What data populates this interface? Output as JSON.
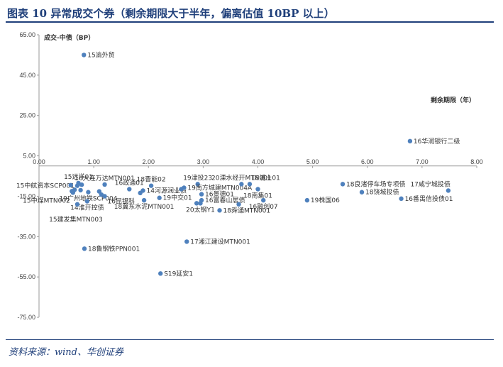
{
  "figure": {
    "title": "图表 10    异常成交个券（剩余期限大于半年，偏离估值 10BP 以上）",
    "source": "资料来源：wind、华创证券"
  },
  "colors": {
    "point": "#4f81bd",
    "title": "#1f3f7a",
    "axis": "#9a9a9a"
  },
  "chart_data": {
    "type": "scatter",
    "xlabel": "剩余期限（年）",
    "ylabel": "成交-中债（BP）",
    "xlim": [
      0,
      8
    ],
    "ylim": [
      -75,
      65
    ],
    "xticks": [
      0,
      1,
      2,
      3,
      4,
      5,
      6,
      7,
      8
    ],
    "yticks": [
      65,
      45,
      25,
      5,
      -15,
      -35,
      -55,
      -75
    ],
    "xtick_labels": [
      "0.00",
      "1.00",
      "2.00",
      "3.00",
      "4.00",
      "5.00",
      "6.00",
      "7.00",
      "8.00"
    ],
    "ytick_labels": [
      "65.00",
      "45.00",
      "25.00",
      "5.00",
      "-15.00",
      "-35.00",
      "-55.00",
      "-75.00"
    ],
    "grid": false,
    "points": [
      {
        "label": "15渝外贸",
        "x": 0.82,
        "y": 55.0,
        "anchor": "end-right"
      },
      {
        "label": "16华润银行二级",
        "x": 6.78,
        "y": 12.3,
        "anchor": "end-right"
      },
      {
        "label": "15远洋01",
        "x": 0.72,
        "y": -8.5,
        "anchor": "above"
      },
      {
        "label": "15中航资本SCP001",
        "x": 0.7,
        "y": -9.8,
        "anchor": "left"
      },
      {
        "label": "15中煤MTN002",
        "x": 0.62,
        "y": -13.2,
        "anchor": "left-below"
      },
      {
        "label": "19广州地铁SCP004",
        "x": 0.9,
        "y": -13.0,
        "anchor": "below"
      },
      {
        "label": "14淮开控债",
        "x": 0.88,
        "y": -17.5,
        "anchor": "below"
      },
      {
        "label": "15建发集MTN003",
        "x": 0.7,
        "y": -19.0,
        "anchor": "below-left"
      },
      {
        "label": "16大连万达MTN001",
        "x": 1.2,
        "y": -9.2,
        "anchor": "above"
      },
      {
        "label": "16政通01",
        "x": 1.65,
        "y": -11.5,
        "anchor": "above"
      },
      {
        "label": "16昆银科",
        "x": 1.2,
        "y": -15.0,
        "anchor": "below-right"
      },
      {
        "label": "18鲁钢铁PPN001",
        "x": 0.83,
        "y": -41.0,
        "anchor": "end-right"
      },
      {
        "label": "18晋能02",
        "x": 2.05,
        "y": -9.8,
        "anchor": "above"
      },
      {
        "label": "14河源润业债",
        "x": 1.9,
        "y": -12.2,
        "anchor": "end-right"
      },
      {
        "label": "18冀东水泥MTN001",
        "x": 1.92,
        "y": -17.0,
        "anchor": "below"
      },
      {
        "label": "19中交01",
        "x": 2.2,
        "y": -15.8,
        "anchor": "end-right"
      },
      {
        "label": "19津投23",
        "x": 2.9,
        "y": -9.0,
        "anchor": "above"
      },
      {
        "label": "19南方城建MTN004A",
        "x": 2.65,
        "y": -10.8,
        "anchor": "end-right"
      },
      {
        "label": "S19延安1",
        "x": 2.22,
        "y": -53.3,
        "anchor": "end-right"
      },
      {
        "label": "17湘江建设MTN001",
        "x": 2.7,
        "y": -37.5,
        "anchor": "end-right"
      },
      {
        "label": "20溧水经开MTN001",
        "x": 3.7,
        "y": -9.0,
        "anchor": "above"
      },
      {
        "label": "16景德01",
        "x": 2.97,
        "y": -14.0,
        "anchor": "end-right"
      },
      {
        "label": "16富春山居债",
        "x": 2.97,
        "y": -17.0,
        "anchor": "end-right"
      },
      {
        "label": "20太钢Y1",
        "x": 2.95,
        "y": -18.5,
        "anchor": "below"
      },
      {
        "label": "18舜通MTN001",
        "x": 3.3,
        "y": -22.0,
        "anchor": "end-right"
      },
      {
        "label": "18浦土01",
        "x": 3.85,
        "y": -9.0,
        "anchor": "above-right"
      },
      {
        "label": "18南集01",
        "x": 4.0,
        "y": -11.5,
        "anchor": "below"
      },
      {
        "label": "16融创07",
        "x": 4.1,
        "y": -17.0,
        "anchor": "below"
      },
      {
        "label": "19株国06",
        "x": 4.9,
        "y": -17.0,
        "anchor": "end-right"
      },
      {
        "label": "18良渚停车场专项债",
        "x": 5.55,
        "y": -9.0,
        "anchor": "end-right"
      },
      {
        "label": "18饶城投债",
        "x": 5.9,
        "y": -13.0,
        "anchor": "end-right"
      },
      {
        "label": "16番禺信投债01",
        "x": 6.62,
        "y": -16.2,
        "anchor": "end-right"
      },
      {
        "label": "17咸宁城投债",
        "x": 7.48,
        "y": -12.2,
        "anchor": "above-left"
      },
      {
        "label": "",
        "x": 0.58,
        "y": -9.5
      },
      {
        "label": "",
        "x": 0.65,
        "y": -11.8
      },
      {
        "label": "",
        "x": 0.78,
        "y": -9.3
      },
      {
        "label": "",
        "x": 0.6,
        "y": -12.5
      },
      {
        "label": "",
        "x": 0.76,
        "y": -12.0
      },
      {
        "label": "",
        "x": 1.1,
        "y": -12.6
      },
      {
        "label": "",
        "x": 1.14,
        "y": -14.2
      },
      {
        "label": "",
        "x": 1.85,
        "y": -13.4
      },
      {
        "label": "",
        "x": 2.6,
        "y": -11.5
      },
      {
        "label": "",
        "x": 2.88,
        "y": -18.5
      },
      {
        "label": "",
        "x": 3.65,
        "y": -19.0
      }
    ]
  }
}
